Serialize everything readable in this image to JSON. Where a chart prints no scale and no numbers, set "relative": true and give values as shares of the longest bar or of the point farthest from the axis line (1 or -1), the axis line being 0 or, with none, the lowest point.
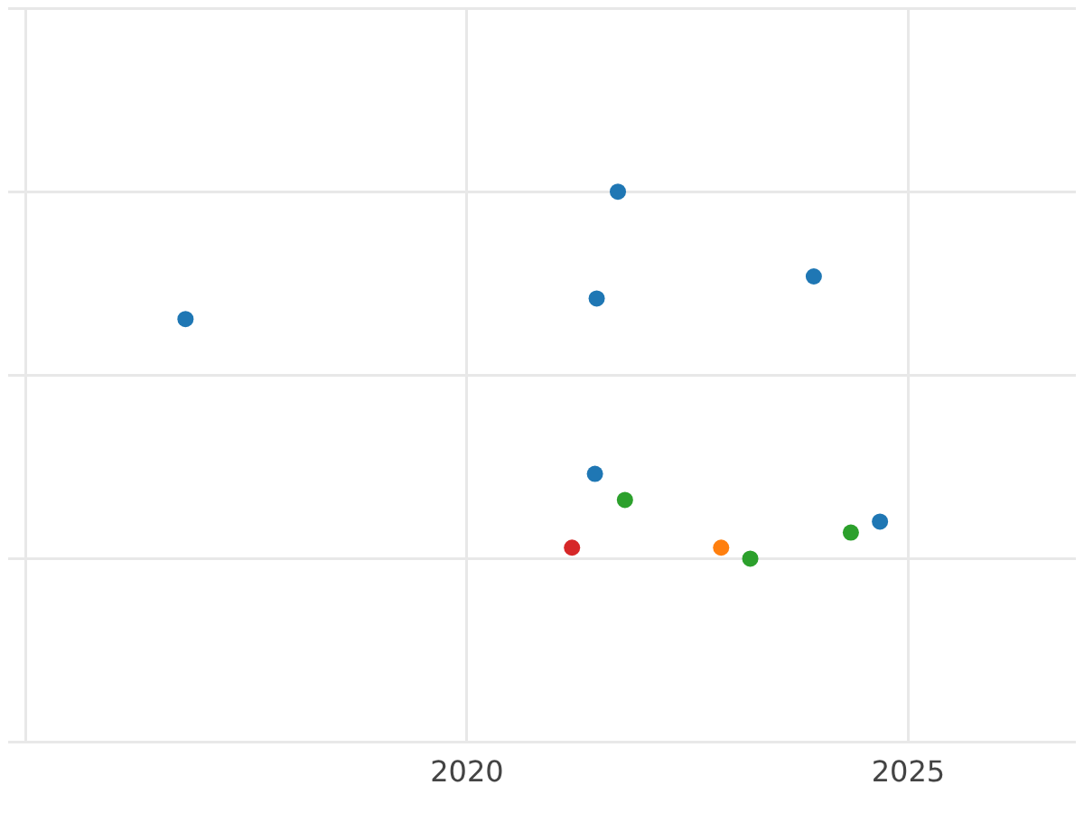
{
  "chart_data": {
    "type": "scatter",
    "relative": true,
    "grid": true,
    "legend": false,
    "marker": "circle",
    "xlim": [
      2014.8,
      2026.9
    ],
    "xticks": [
      {
        "value": 2015,
        "label": null
      },
      2020,
      2025
    ],
    "series": [
      {
        "color": "#1f77b4",
        "x": [
          2021.71,
          2016.81,
          2021.47,
          2023.93,
          2021.45,
          2024.68
        ],
        "values": [
          1,
          0.653,
          0.709,
          0.769,
          0.231,
          0.101
        ]
      },
      {
        "color": "#2ca02c",
        "x": [
          2021.79,
          2024.35,
          2023.21
        ],
        "values": [
          0.16,
          0.071,
          0
        ]
      },
      {
        "color": "#ff7f0e",
        "x": [
          2022.88
        ],
        "values": [
          0.03
        ]
      },
      {
        "color": "#d62728",
        "x": [
          2021.19
        ],
        "values": [
          0.03
        ]
      }
    ]
  }
}
